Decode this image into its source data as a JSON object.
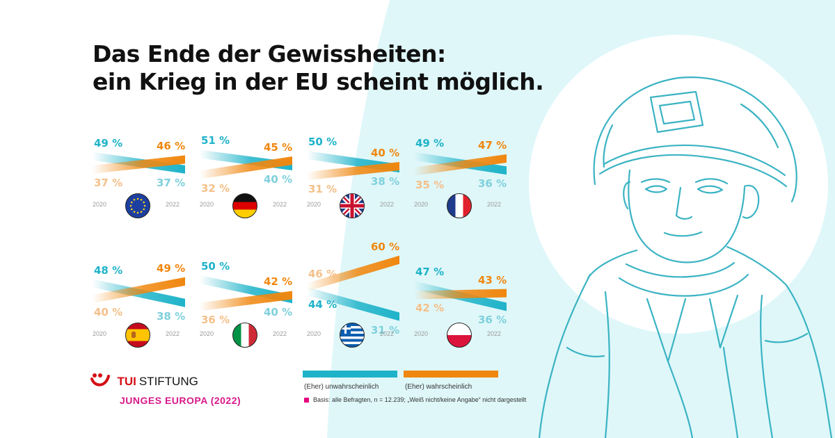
{
  "title": {
    "line1": "Das Ende der Gewissheiten:",
    "line2": "ein Krieg in der EU scheint möglich."
  },
  "colors": {
    "unlikely": "#1fb3c9",
    "likely": "#f0870f",
    "unlikely_label": "#7fd0dc",
    "likely_label": "#f4c08a",
    "bg_circle": "#dff7f9"
  },
  "chart_data": {
    "type": "line",
    "x": [
      "2020",
      "2022"
    ],
    "series_names": [
      "(Eher) unwahrscheinlich",
      "(Eher) wahrscheinlich"
    ],
    "panels": [
      {
        "flag": "eu-flag-icon",
        "unlikely": [
          49,
          37
        ],
        "likely": [
          37,
          46
        ],
        "labels": {
          "u0": "49 %",
          "u1": "37 %",
          "l0": "37 %",
          "l1": "46 %"
        }
      },
      {
        "flag": "germany-flag-icon",
        "unlikely": [
          51,
          40
        ],
        "likely": [
          32,
          45
        ],
        "labels": {
          "u0": "51 %",
          "u1": "40 %",
          "l0": "32 %",
          "l1": "45 %"
        }
      },
      {
        "flag": "uk-flag-icon",
        "unlikely": [
          50,
          38
        ],
        "likely": [
          31,
          40
        ],
        "labels": {
          "u0": "50 %",
          "u1": "38 %",
          "l0": "31 %",
          "l1": "40 %"
        }
      },
      {
        "flag": "france-flag-icon",
        "unlikely": [
          49,
          36
        ],
        "likely": [
          35,
          47
        ],
        "labels": {
          "u0": "49 %",
          "u1": "36 %",
          "l0": "35 %",
          "l1": "47 %"
        }
      },
      {
        "flag": "spain-flag-icon",
        "unlikely": [
          48,
          38
        ],
        "likely": [
          40,
          49
        ],
        "labels": {
          "u0": "48 %",
          "u1": "38 %",
          "l0": "40 %",
          "l1": "49 %"
        }
      },
      {
        "flag": "italy-flag-icon",
        "unlikely": [
          50,
          40
        ],
        "likely": [
          36,
          42
        ],
        "labels": {
          "u0": "50 %",
          "u1": "40 %",
          "l0": "36 %",
          "l1": "42 %"
        }
      },
      {
        "flag": "greece-flag-icon",
        "unlikely": [
          44,
          31
        ],
        "likely": [
          46,
          60
        ],
        "labels": {
          "u0": "44 %",
          "u1": "31 %",
          "l0": "46 %",
          "l1": "60 %"
        }
      },
      {
        "flag": "poland-flag-icon",
        "unlikely": [
          47,
          36
        ],
        "likely": [
          42,
          43
        ],
        "labels": {
          "u0": "47 %",
          "u1": "36 %",
          "l0": "42 %",
          "l1": "43 %"
        }
      }
    ]
  },
  "years": {
    "start": "2020",
    "end": "2022"
  },
  "legend": {
    "unlikely": "(Eher) unwahrscheinlich",
    "likely": "(Eher) wahrscheinlich"
  },
  "note": "Basis: alle Befragten, n = 12.239; „Weiß nicht/keine Angabe“ nicht dargestellt",
  "logo": {
    "brand": "TUI",
    "name": "STIFTUNG",
    "sub": "JUNGES EUROPA (2022)"
  }
}
